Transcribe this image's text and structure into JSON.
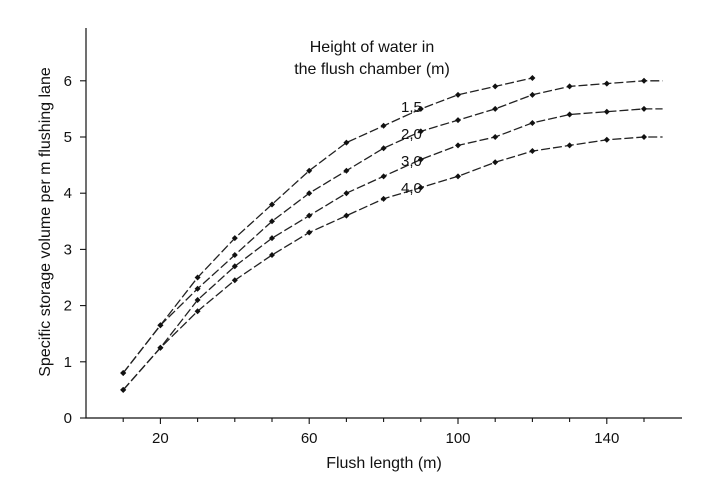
{
  "chart_data": {
    "type": "line",
    "title": "",
    "legend_title_lines": [
      "Height of water in",
      "the flush chamber (m)"
    ],
    "xlabel": "Flush length (m)",
    "ylabel": "Specific storage volume per m flushing lane",
    "xlim": [
      0,
      160
    ],
    "ylim": [
      0,
      6.5
    ],
    "x_ticks": [
      20,
      60,
      100,
      140
    ],
    "y_ticks": [
      0,
      1,
      2,
      3,
      4,
      5,
      6
    ],
    "x": [
      10,
      20,
      30,
      40,
      50,
      60,
      70,
      80,
      90,
      100,
      110,
      120,
      130,
      140,
      150,
      155
    ],
    "series": [
      {
        "name": "1,5",
        "x": [
          10,
          20,
          30,
          40,
          50,
          60,
          70,
          80,
          90,
          100,
          110,
          120
        ],
        "values": [
          0.8,
          1.65,
          2.5,
          3.2,
          3.8,
          4.4,
          4.9,
          5.2,
          5.5,
          5.75,
          5.9,
          6.05
        ]
      },
      {
        "name": "2,0",
        "x": [
          10,
          20,
          30,
          40,
          50,
          60,
          70,
          80,
          90,
          100,
          110,
          120,
          130,
          140,
          150,
          155
        ],
        "values": [
          0.8,
          1.65,
          2.3,
          2.9,
          3.5,
          4.0,
          4.4,
          4.8,
          5.1,
          5.3,
          5.5,
          5.75,
          5.9,
          5.95,
          6.0,
          6.0
        ]
      },
      {
        "name": "3,0",
        "x": [
          10,
          20,
          30,
          40,
          50,
          60,
          70,
          80,
          90,
          100,
          110,
          120,
          130,
          140,
          150,
          155
        ],
        "values": [
          0.5,
          1.25,
          2.1,
          2.7,
          3.2,
          3.6,
          4.0,
          4.3,
          4.6,
          4.85,
          5.0,
          5.25,
          5.4,
          5.45,
          5.5,
          5.5
        ]
      },
      {
        "name": "4,0",
        "x": [
          10,
          20,
          30,
          40,
          50,
          60,
          70,
          80,
          90,
          100,
          110,
          120,
          130,
          140,
          150,
          155
        ],
        "values": [
          0.5,
          1.25,
          1.9,
          2.45,
          2.9,
          3.3,
          3.6,
          3.9,
          4.1,
          4.3,
          4.55,
          4.75,
          4.85,
          4.95,
          5.0,
          5.0
        ]
      }
    ]
  }
}
